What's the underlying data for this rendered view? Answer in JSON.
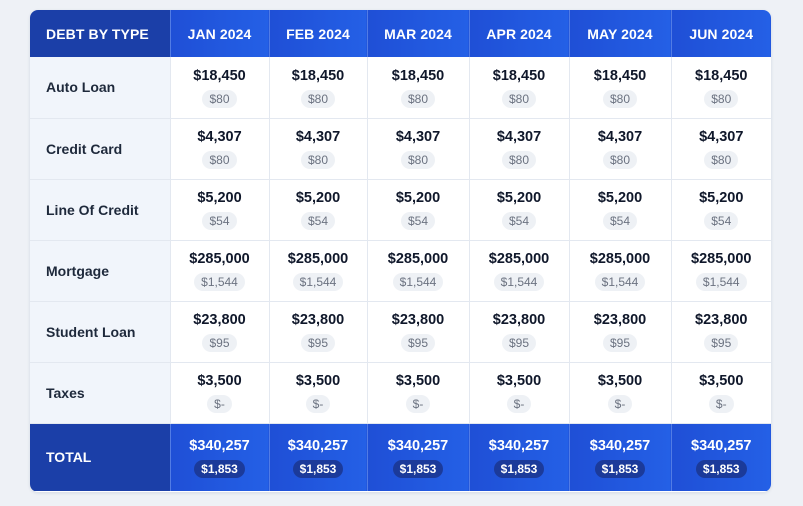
{
  "table": {
    "corner_label": "DEBT BY TYPE",
    "months": [
      "JAN 2024",
      "FEB 2024",
      "MAR 2024",
      "APR 2024",
      "MAY 2024",
      "JUN 2024"
    ],
    "rows": [
      {
        "label": "Auto Loan",
        "balance": "$18,450",
        "payment": "$80"
      },
      {
        "label": "Credit Card",
        "balance": "$4,307",
        "payment": "$80"
      },
      {
        "label": "Line Of Credit",
        "balance": "$5,200",
        "payment": "$54"
      },
      {
        "label": "Mortgage",
        "balance": "$285,000",
        "payment": "$1,544"
      },
      {
        "label": "Student Loan",
        "balance": "$23,800",
        "payment": "$95"
      },
      {
        "label": "Taxes",
        "balance": "$3,500",
        "payment": "$-"
      }
    ],
    "total": {
      "label": "TOTAL",
      "balance": "$340,257",
      "payment": "$1,853"
    }
  },
  "colors": {
    "header_blue": "#2460e6",
    "header_dark": "#1b3fa8",
    "label_bg": "#f1f5fb",
    "pill_bg": "#eef1f5"
  }
}
